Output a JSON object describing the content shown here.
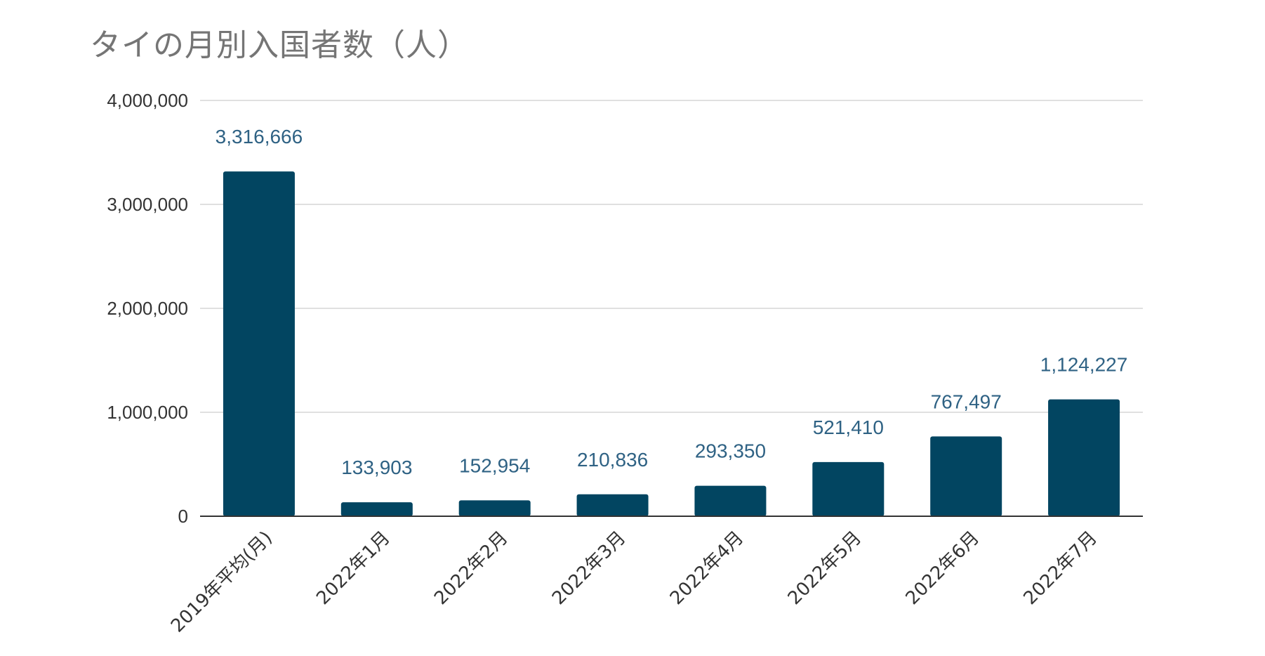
{
  "chart_data": {
    "type": "bar",
    "title": "タイの月別入国者数（人）",
    "categories": [
      "2019年平均(月)",
      "2022年1月",
      "2022年2月",
      "2022年3月",
      "2022年4月",
      "2022年5月",
      "2022年6月",
      "2022年7月"
    ],
    "values": [
      3316666,
      133903,
      152954,
      210836,
      293350,
      521410,
      767497,
      1124227
    ],
    "value_labels": [
      "3,316,666",
      "133,903",
      "152,954",
      "210,836",
      "293,350",
      "521,410",
      "767,497",
      "1,124,227"
    ],
    "ylim": [
      0,
      4000000
    ],
    "yticks": [
      0,
      1000000,
      2000000,
      3000000,
      4000000
    ],
    "ytick_labels": [
      "0",
      "1,000,000",
      "2,000,000",
      "3,000,000",
      "4,000,000"
    ],
    "xlabel": "",
    "ylabel": "",
    "grid": true,
    "legend": "none",
    "colors": {
      "bar": "#024561",
      "data_label": "#2f6284",
      "gridline": "#d6d6d6",
      "title": "#757575"
    }
  }
}
